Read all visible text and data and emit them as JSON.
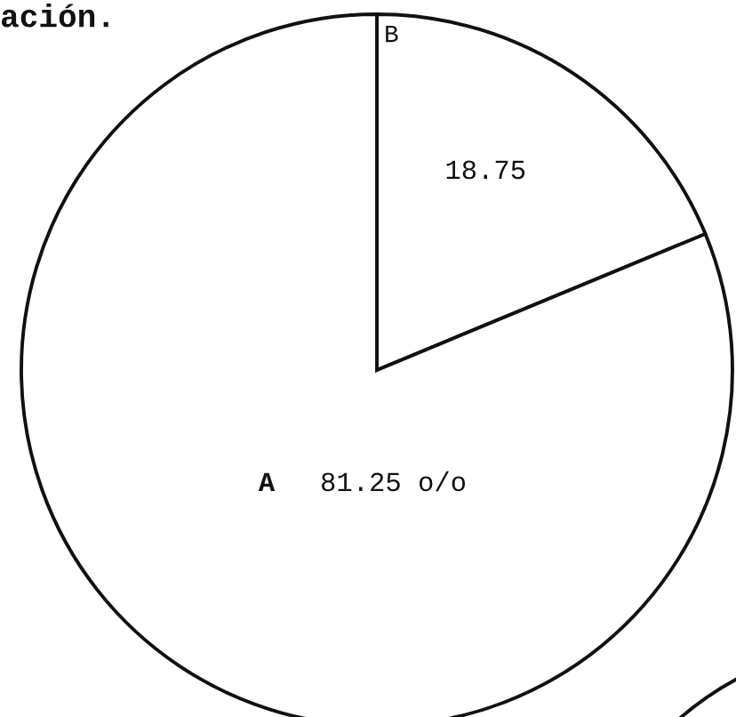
{
  "chart_data": {
    "type": "pie",
    "title": "ación.",
    "categories": [
      "A",
      "B"
    ],
    "values": [
      81.25,
      18.75
    ],
    "colors": [
      "#ffffff",
      "#ffffff"
    ],
    "value_labels": [
      "81.25 o/o",
      "18.75"
    ]
  }
}
